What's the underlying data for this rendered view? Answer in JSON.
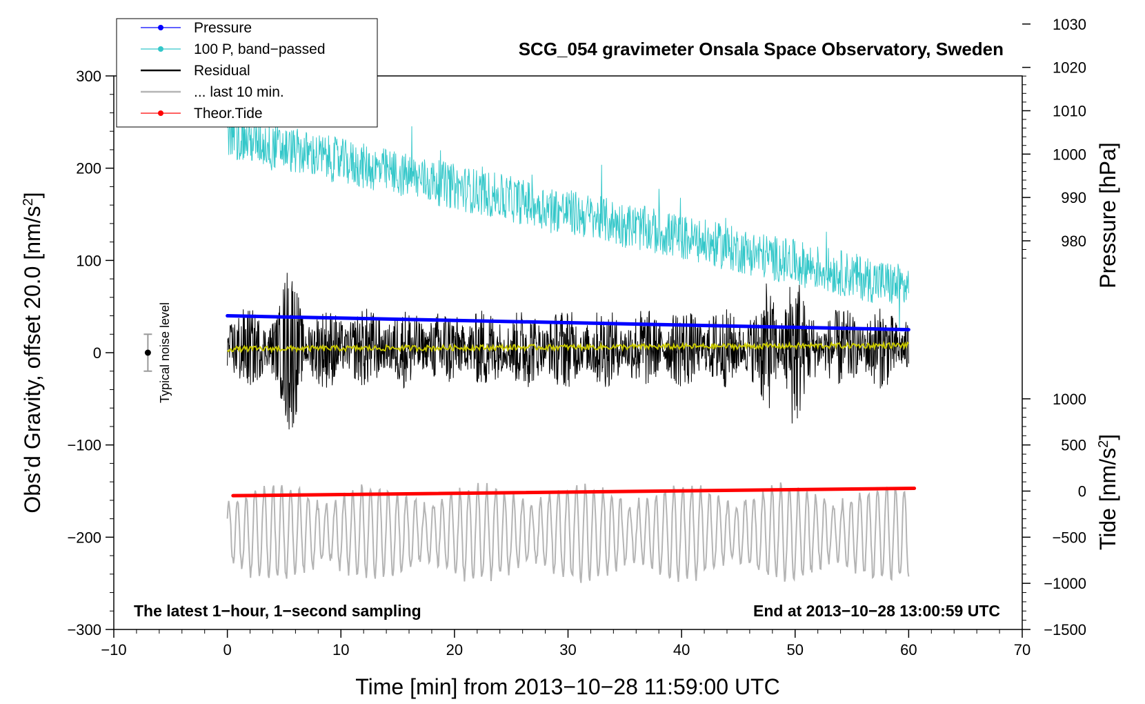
{
  "chart_data": {
    "type": "line",
    "title": "SCG_054 gravimeter Onsala Space Observatory, Sweden",
    "xlabel": "Time [min] from 2013−10−28 11:59:00 UTC",
    "ylabel_left": "Obs’d Gravity, offset 20.0 [nm/s",
    "ylabel_left_sup": "2",
    "ylabel_left_end": "]",
    "ylabel_right_pressure": "Pressure [hPa]",
    "ylabel_right_tide": "Tide [nm/s",
    "ylabel_right_tide_sup": "2",
    "ylabel_right_tide_end": "]",
    "xlim": [
      -10,
      70
    ],
    "ylim": [
      -300,
      300
    ],
    "x_ticks": [
      -10,
      0,
      10,
      20,
      30,
      40,
      50,
      60,
      70
    ],
    "x_tick_labels": [
      "−10",
      "0",
      "10",
      "20",
      "30",
      "40",
      "50",
      "60",
      "70"
    ],
    "y_ticks": [
      -300,
      -200,
      -100,
      0,
      100,
      200,
      300
    ],
    "y_tick_labels": [
      "−300",
      "−200",
      "−100",
      "0",
      "100",
      "200",
      "300"
    ],
    "pressure_axis": {
      "ticks": [
        980,
        990,
        1000,
        1010,
        1020,
        1030
      ],
      "tick_labels": [
        "980",
        "990",
        "1000",
        "1010",
        "1020",
        "1030"
      ],
      "scale_gravity_per_hpa": 4.7,
      "offset_hpa_at_zero": 954.2
    },
    "tide_axis": {
      "ticks": [
        -1500,
        -1000,
        -500,
        0,
        500,
        1000
      ],
      "tick_labels": [
        "−1500",
        "−1000",
        "−500",
        "0",
        "500",
        "1000"
      ],
      "scale_gravity_per_unit": 0.1,
      "offset_gravity_at_zero": -150
    },
    "series": [
      {
        "name": "Pressure",
        "color": "#0000ff",
        "marker": "dot",
        "x": [
          0,
          60
        ],
        "y": [
          40,
          25
        ]
      },
      {
        "name": "100 P, band−passed",
        "color": "#33c7c9",
        "marker": "dot",
        "x": [
          0,
          60
        ],
        "y": [
          235,
          70
        ],
        "noise_amplitude": 25
      },
      {
        "name": "Residual",
        "color": "#000000",
        "marker": "line",
        "x": [
          0,
          60
        ],
        "y": [
          5,
          5
        ],
        "noise_amplitude": 40,
        "bursts": [
          {
            "x": 5.5,
            "amp": 95
          },
          {
            "x": 50,
            "amp": 90
          },
          {
            "x": 47.5,
            "amp": 70
          }
        ]
      },
      {
        "name": "... last 10 min.",
        "color": "#b4b4b4",
        "marker": "line",
        "x": [
          0,
          60
        ],
        "y": [
          -195,
          -195
        ],
        "noise_amplitude": 50
      },
      {
        "name": "Theor.Tide",
        "color": "#ff0000",
        "marker": "dot",
        "x": [
          0.5,
          60.5
        ],
        "y": [
          -155,
          -147
        ]
      },
      {
        "name": "",
        "color": "#c8c800",
        "marker": "line",
        "x": [
          0,
          60
        ],
        "y": [
          4,
          8
        ],
        "noise_amplitude": 3
      }
    ],
    "noise_level": {
      "label": "Typical noise level",
      "x": -7,
      "center": 0,
      "half_range": 20
    },
    "annotations": {
      "bottom_left": "The latest 1−hour, 1−second sampling",
      "bottom_right": "End at 2013−10−28 13:00:59 UTC"
    },
    "legend_position": "top-left"
  },
  "colors": {
    "pressure": "#0000ff",
    "bandpassed": "#33c7c9",
    "residual": "#000000",
    "last10": "#b4b4b4",
    "tide": "#ff0000",
    "smooth": "#c8c800"
  }
}
